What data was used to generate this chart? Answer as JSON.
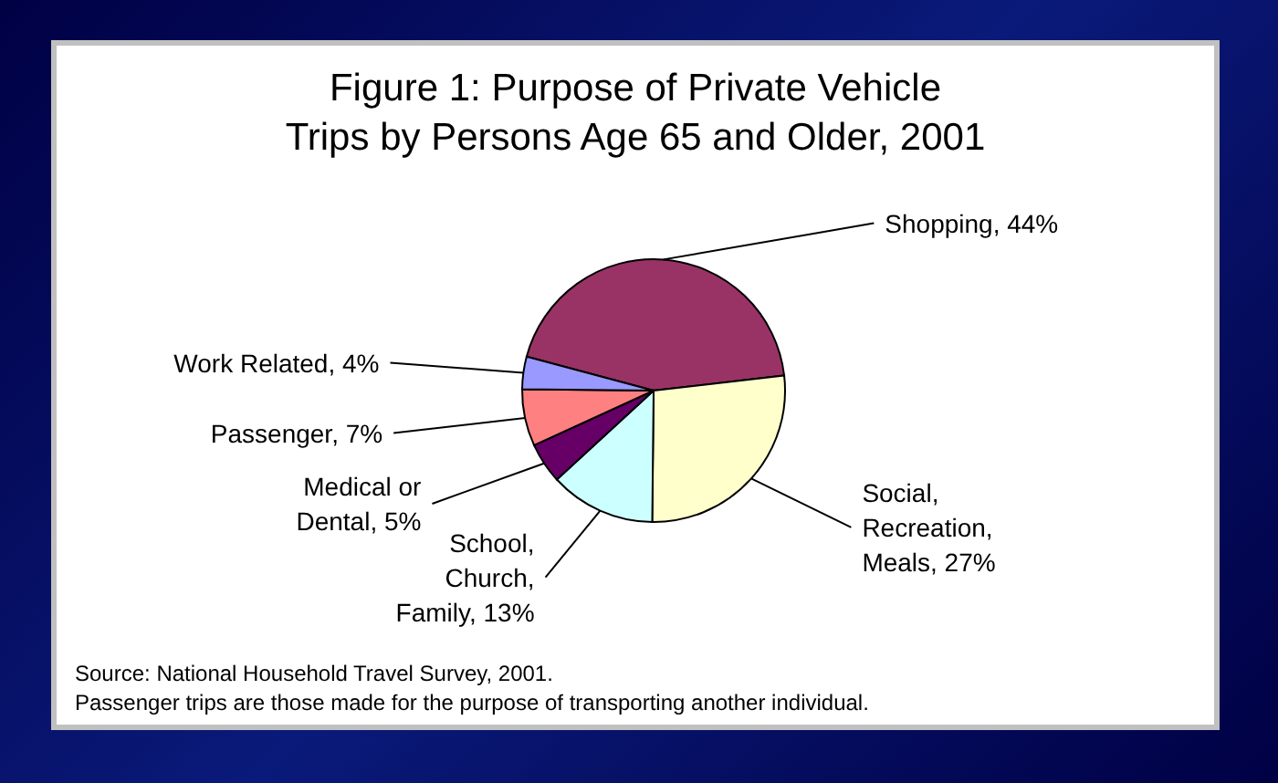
{
  "chart_data": {
    "type": "pie",
    "title": "Figure 1: Purpose of Private Vehicle Trips by Persons Age 65 and Older, 2001",
    "categories": [
      "Shopping",
      "Social, Recreation, Meals",
      "School, Church, Family",
      "Medical or Dental",
      "Passenger",
      "Work Related"
    ],
    "values": [
      44,
      27,
      13,
      5,
      7,
      4
    ],
    "value_labels": [
      "44%",
      "27%",
      "13%",
      "5%",
      "7%",
      "4%"
    ],
    "colors": [
      "#993366",
      "#ffffcc",
      "#ccffff",
      "#660066",
      "#ff8080",
      "#9999ff"
    ],
    "legend": false,
    "annotations": [
      "Source: National Household Travel Survey, 2001.",
      "Passenger trips are those made for the purpose of transporting another individual."
    ]
  }
}
